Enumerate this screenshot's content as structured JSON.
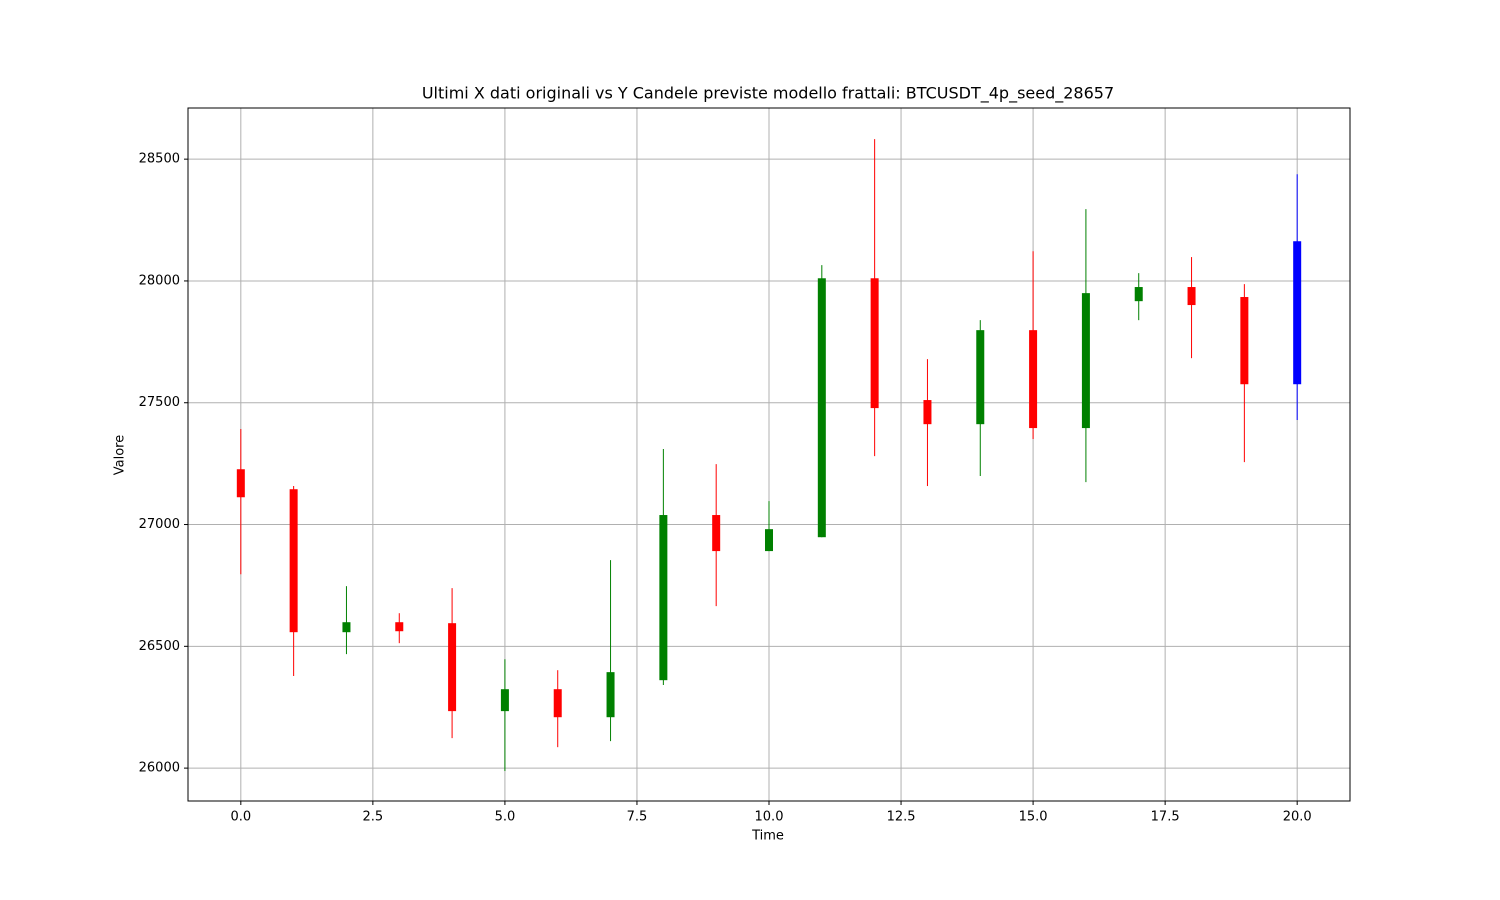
{
  "chart_data": {
    "type": "candlestick",
    "title": "Ultimi X dati originali vs Y Candele previste modello frattali: BTCUSDT_4p_seed_28657",
    "xlabel": "Time",
    "ylabel": "Valore",
    "x": [
      0,
      1,
      2,
      3,
      4,
      5,
      6,
      7,
      8,
      9,
      10,
      11,
      12,
      13,
      14,
      15,
      16,
      17,
      18,
      19,
      20
    ],
    "open": [
      27227,
      27145,
      26558,
      26599,
      26595,
      26234,
      26324,
      26209,
      26361,
      27039,
      26891,
      26948,
      28011,
      27511,
      27412,
      27798,
      27396,
      27917,
      27975,
      27934,
      27576
    ],
    "high": [
      27392,
      27158,
      26747,
      26636,
      26739,
      26447,
      26402,
      26854,
      27310,
      27248,
      27096,
      28065,
      28582,
      27679,
      27839,
      28122,
      28295,
      28032,
      28098,
      27987,
      28438
    ],
    "low": [
      26796,
      26378,
      26468,
      26513,
      26123,
      25988,
      26086,
      26111,
      26341,
      26665,
      26891,
      26948,
      27281,
      27158,
      27199,
      27351,
      27174,
      27839,
      27683,
      27256,
      27429
    ],
    "close": [
      27112,
      26558,
      26599,
      26562,
      26234,
      26324,
      26209,
      26394,
      27039,
      26891,
      26981,
      28011,
      27478,
      27412,
      27798,
      27396,
      27950,
      27975,
      27901,
      27576,
      28163
    ],
    "colors": [
      "red",
      "red",
      "green",
      "red",
      "red",
      "green",
      "red",
      "green",
      "green",
      "red",
      "green",
      "green",
      "red",
      "red",
      "green",
      "red",
      "green",
      "green",
      "red",
      "red",
      "blue"
    ],
    "xlim": [
      -1,
      21
    ],
    "ylim": [
      25865,
      28710
    ],
    "xticks": [
      {
        "value": 0,
        "label": "0.0"
      },
      2.5,
      {
        "value": 5,
        "label": "5.0"
      },
      7.5,
      {
        "value": 10,
        "label": "10.0"
      },
      12.5,
      {
        "value": 15,
        "label": "15.0"
      },
      17.5,
      {
        "value": 20,
        "label": "20.0"
      }
    ],
    "yticks": [
      26000,
      26500,
      27000,
      27500,
      28000,
      28500
    ],
    "grid": true
  }
}
